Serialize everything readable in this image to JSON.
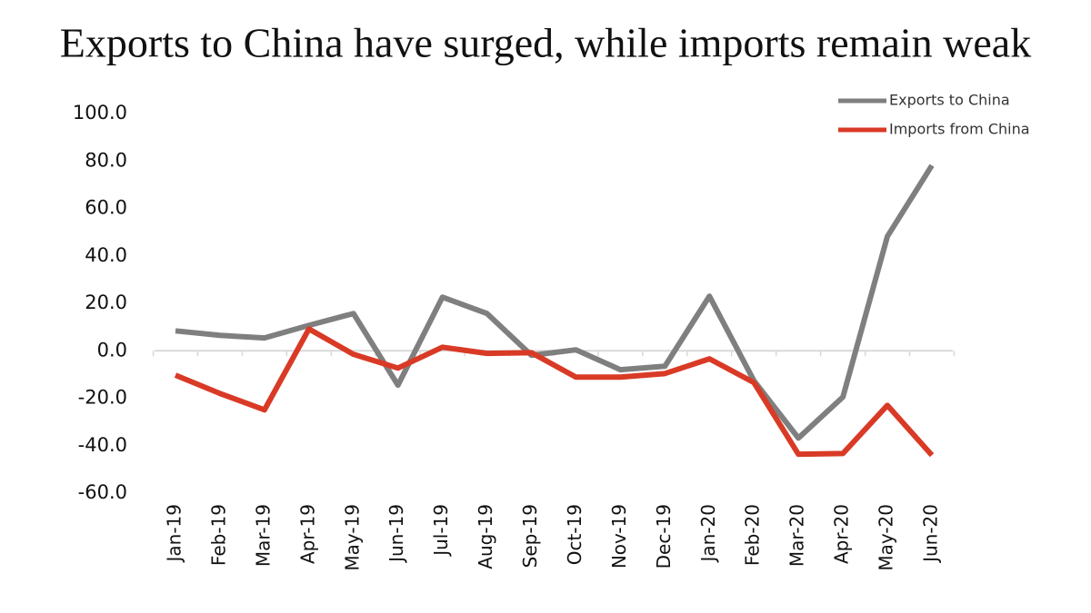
{
  "chart_data": {
    "type": "line",
    "title": "Exports to China have surged, while imports remain weak",
    "categories": [
      "Jan-19",
      "Feb-19",
      "Mar-19",
      "Apr-19",
      "May-19",
      "Jun-19",
      "Jul-19",
      "Aug-19",
      "Sep-19",
      "Oct-19",
      "Nov-19",
      "Dec-19",
      "Jan-20",
      "Feb-20",
      "Mar-20",
      "Apr-20",
      "May-20",
      "Jun-20"
    ],
    "series": [
      {
        "name": "Exports to China",
        "color": "#7f7f7f",
        "values": [
          8.4,
          6.5,
          5.4,
          10.7,
          15.7,
          -14.5,
          22.6,
          15.7,
          -1.9,
          0.4,
          -8.0,
          -6.5,
          23.0,
          -12.6,
          -36.8,
          -19.5,
          48.2,
          78.1
        ]
      },
      {
        "name": "Imports from China",
        "color": "#d93a26",
        "values": [
          -10.3,
          -18.0,
          -24.9,
          9.2,
          -1.5,
          -7.3,
          1.5,
          -1.1,
          -0.8,
          -11.1,
          -11.1,
          -9.6,
          -3.4,
          -13.4,
          -43.6,
          -43.3,
          -23.0,
          -44.0
        ]
      }
    ],
    "ylim": [
      -60,
      100
    ],
    "yticks": [
      {
        "value": 100,
        "label": "100.0"
      },
      {
        "value": 80,
        "label": "80.0"
      },
      {
        "value": 60,
        "label": "60.0"
      },
      {
        "value": 40,
        "label": "40.0"
      },
      {
        "value": 20,
        "label": "20.0"
      },
      {
        "value": 0,
        "label": "0.0"
      },
      {
        "value": -20,
        "label": "-20.0"
      },
      {
        "value": -40,
        "label": "-40.0"
      },
      {
        "value": -60,
        "label": "-60.0"
      }
    ],
    "legend": "top-right"
  }
}
